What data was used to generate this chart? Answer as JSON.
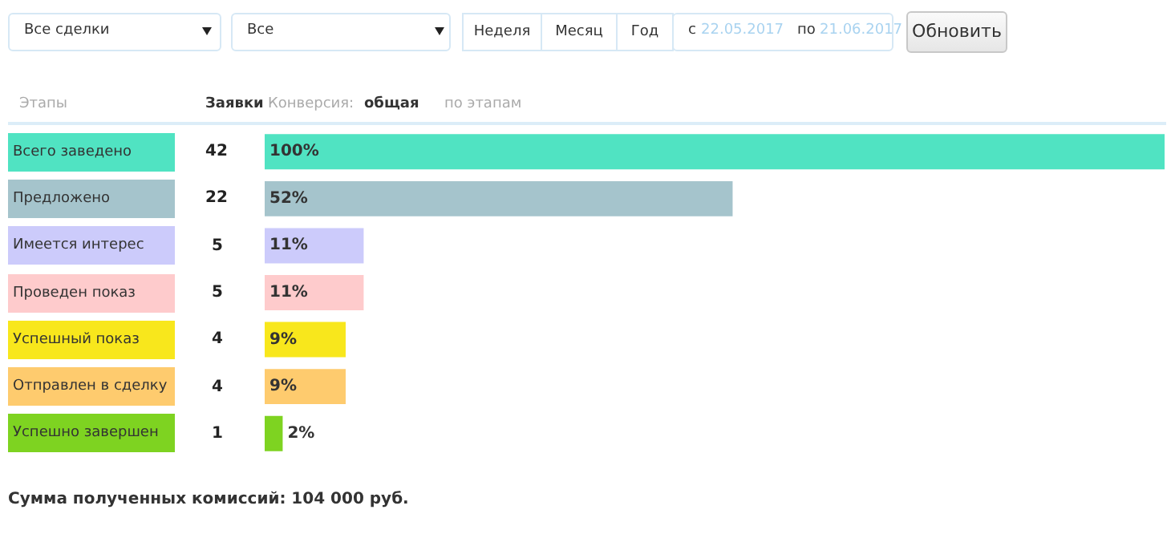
{
  "chart_data": {
    "type": "bar",
    "orientation": "horizontal",
    "categories": [
      "Всего заведено",
      "Предложено",
      "Имеется интерес",
      "Проведен показ",
      "Успешный показ",
      "Отправлен в сделку",
      "Успешно завершен"
    ],
    "values": [
      100,
      52,
      11,
      11,
      9,
      9,
      2
    ],
    "value_labels": [
      "100%",
      "52%",
      "11%",
      "11%",
      "9%",
      "9%",
      "2%"
    ],
    "colors": [
      "#50e3c2",
      "#a5c4cc",
      "#cccbfb",
      "#fecbcc",
      "#f8e71c",
      "#fecb6e",
      "#7ed321"
    ],
    "xlim": [
      0,
      100
    ],
    "tick_labels": false,
    "annotations": [
      "Все сделки",
      "Все",
      "Неделя",
      "Месяц",
      "Год",
      "с",
      "22.05.2017",
      "по",
      "21.06.2017",
      "Обновить",
      "Этапы",
      "Заявки",
      "Конверсия:",
      "общая",
      "по этапам",
      "42",
      "22",
      "5",
      "5",
      "4",
      "4",
      "1",
      "Сумма полученных комиссий: 104 000 руб."
    ]
  }
}
